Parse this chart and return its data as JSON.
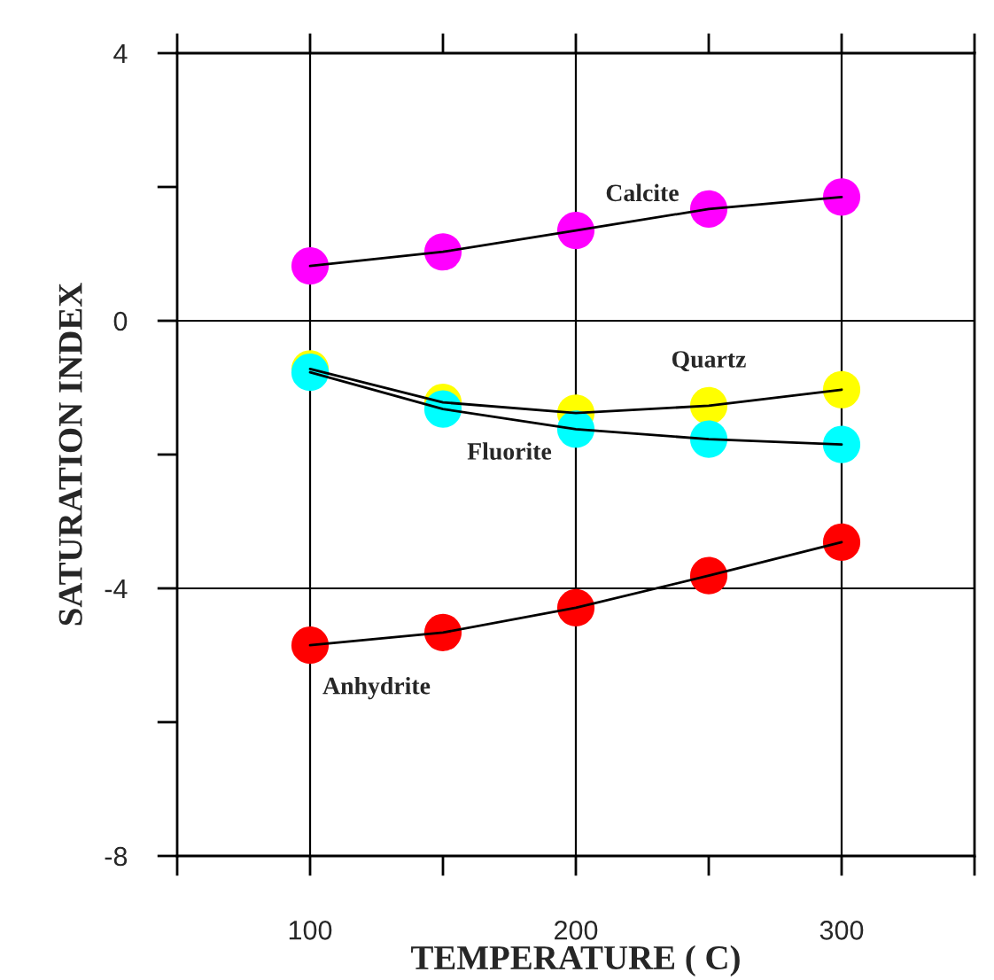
{
  "chart_data": {
    "type": "line",
    "xlabel": "TEMPERATURE ( C)",
    "ylabel": "SATURATION INDEX",
    "x": [
      100,
      150,
      200,
      250,
      300
    ],
    "series": [
      {
        "name": "Calcite",
        "color": "#ff00ff",
        "values": [
          0.82,
          1.03,
          1.35,
          1.67,
          1.85
        ]
      },
      {
        "name": "Quartz",
        "color": "#ffff00",
        "values": [
          -0.72,
          -1.22,
          -1.38,
          -1.27,
          -1.03
        ]
      },
      {
        "name": "Fluorite",
        "color": "#00ffff",
        "values": [
          -0.77,
          -1.32,
          -1.62,
          -1.77,
          -1.85
        ]
      },
      {
        "name": "Anhydrite",
        "color": "#ff0000",
        "values": [
          -4.85,
          -4.66,
          -4.29,
          -3.81,
          -3.31
        ]
      }
    ],
    "xlim": [
      50,
      350
    ],
    "xticks": [
      {
        "value": 50,
        "label": null
      },
      100,
      {
        "value": 150,
        "label": null
      },
      200,
      {
        "value": 250,
        "label": null
      },
      300,
      {
        "value": 350,
        "label": null
      }
    ],
    "ylim": [
      -8,
      4
    ],
    "yticks": [
      -8,
      {
        "value": -6,
        "label": null
      },
      -4,
      {
        "value": -2,
        "label": null
      },
      0,
      {
        "value": 2,
        "label": null
      },
      4
    ],
    "grid": true,
    "marker": "circle",
    "line_style": "solid",
    "legend": false
  }
}
